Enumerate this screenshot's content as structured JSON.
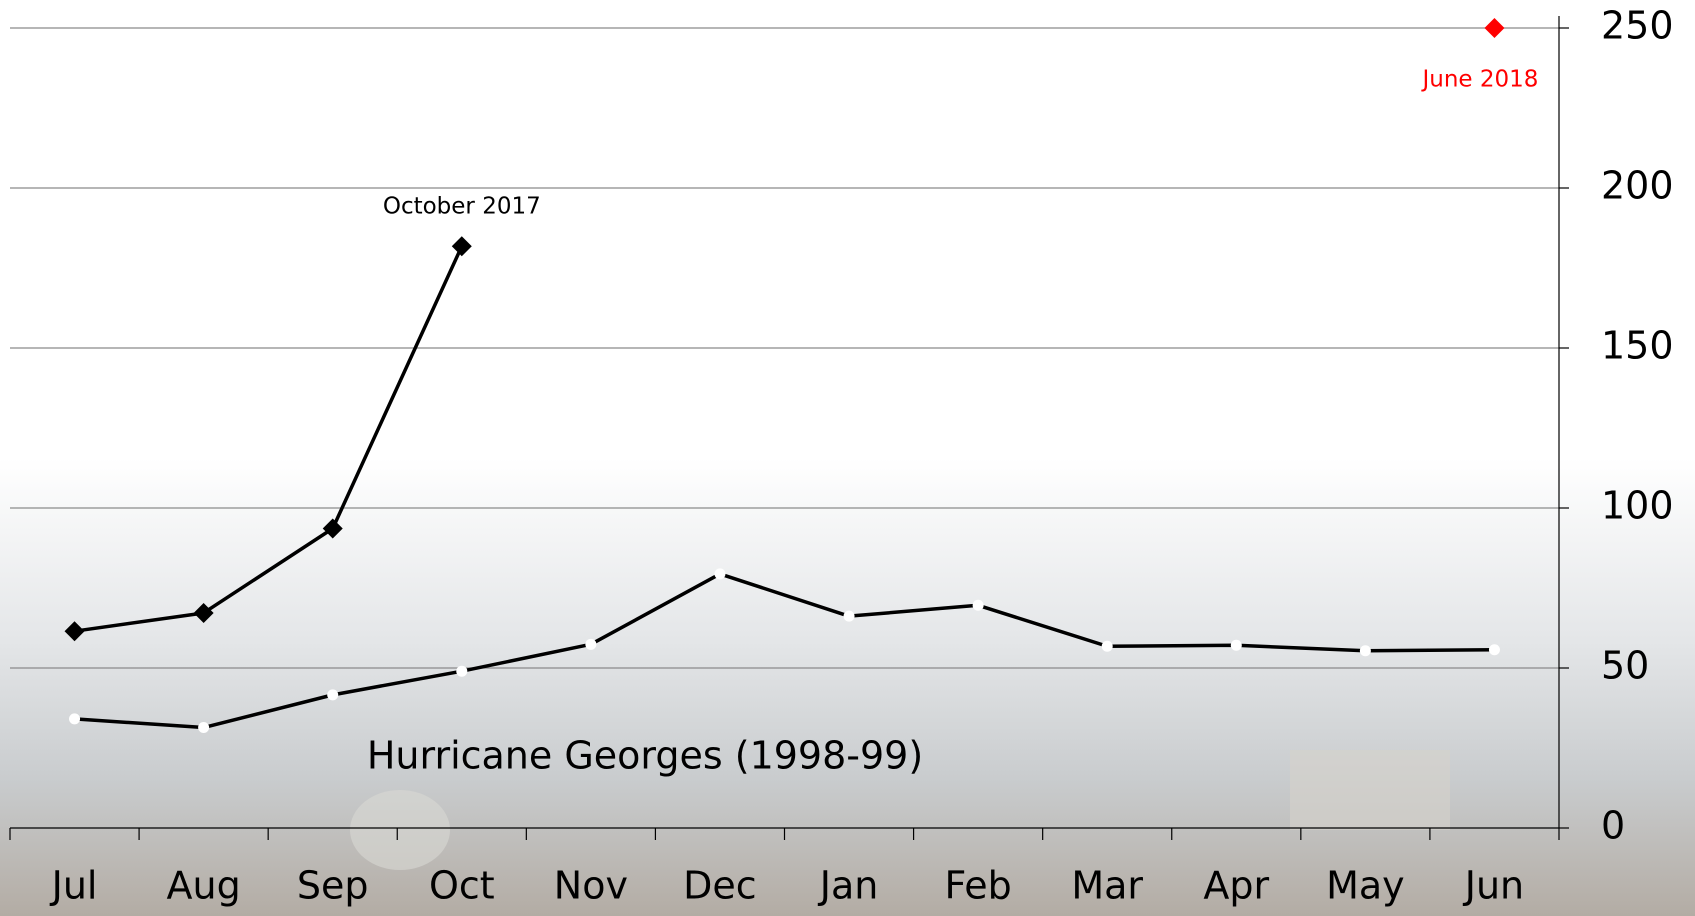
{
  "chart_data": {
    "type": "line",
    "categories": [
      "Jul",
      "Aug",
      "Sep",
      "Oct",
      "Nov",
      "Dec",
      "Jan",
      "Feb",
      "Mar",
      "Apr",
      "May",
      "Jun"
    ],
    "series": [
      {
        "name": "October 2017",
        "color": "#000000",
        "marker": "diamond",
        "values": [
          61.5,
          67.2,
          93.6,
          181.8,
          null,
          null,
          null,
          null,
          null,
          null,
          null,
          null
        ]
      },
      {
        "name": "Hurricane Georges (1998-99)",
        "color": "#000000",
        "marker": "circle",
        "values": [
          34.1,
          31.4,
          41.6,
          49,
          57.4,
          79.4,
          66.2,
          69.6,
          56.8,
          57.1,
          55.4,
          55.7
        ]
      },
      {
        "name": "June 2018",
        "color": "#ff0000",
        "marker": "diamond",
        "values": [
          null,
          null,
          null,
          null,
          null,
          null,
          null,
          null,
          null,
          null,
          null,
          250
        ]
      }
    ],
    "ylim": [
      0,
      250
    ],
    "yticks": [
      0,
      50,
      100,
      150,
      200,
      250
    ],
    "y_axis_side": "right",
    "grid": true
  }
}
